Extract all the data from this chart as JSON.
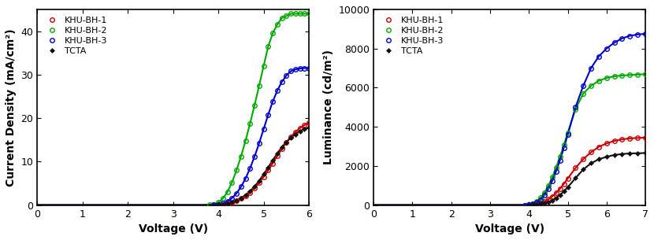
{
  "plot1": {
    "xlabel": "Voltage (V)",
    "ylabel": "Current Density (mA/cm²)",
    "xlim": [
      0,
      6
    ],
    "ylim": [
      0,
      45
    ],
    "yticks": [
      0,
      10,
      20,
      30,
      40
    ],
    "xticks": [
      0,
      1,
      2,
      3,
      4,
      5,
      6
    ],
    "series": [
      {
        "label": "KHU-BH-1",
        "color": "#cc0000",
        "marker": "o",
        "x": [
          0,
          0.5,
          1.0,
          1.5,
          2.0,
          2.5,
          3.0,
          3.5,
          3.6,
          3.7,
          3.8,
          3.9,
          4.0,
          4.1,
          4.2,
          4.3,
          4.4,
          4.5,
          4.6,
          4.7,
          4.8,
          4.9,
          5.0,
          5.1,
          5.2,
          5.3,
          5.4,
          5.5,
          5.6,
          5.7,
          5.8,
          5.9,
          6.0
        ],
        "y": [
          0,
          0,
          0,
          0,
          0,
          0,
          0,
          0,
          0,
          0,
          0,
          0,
          0.05,
          0.12,
          0.28,
          0.55,
          0.95,
          1.5,
          2.1,
          2.9,
          3.9,
          5.1,
          6.5,
          8.0,
          9.6,
          11.3,
          12.9,
          14.4,
          15.7,
          16.8,
          17.7,
          18.4,
          19.0
        ]
      },
      {
        "label": "KHU-BH-2",
        "color": "#00aa00",
        "marker": "o",
        "x": [
          0,
          0.5,
          1.0,
          1.5,
          2.0,
          2.5,
          3.0,
          3.5,
          3.6,
          3.7,
          3.8,
          3.9,
          4.0,
          4.1,
          4.2,
          4.3,
          4.4,
          4.5,
          4.6,
          4.7,
          4.8,
          4.9,
          5.0,
          5.1,
          5.2,
          5.3,
          5.4,
          5.5,
          5.6,
          5.7,
          5.8,
          5.9,
          6.0
        ],
        "y": [
          0,
          0,
          0,
          0,
          0,
          0,
          0,
          0,
          0,
          0,
          0.05,
          0.2,
          0.6,
          1.5,
          3.0,
          5.2,
          8.0,
          11.2,
          14.8,
          18.8,
          23.0,
          27.5,
          32.0,
          36.5,
          39.5,
          41.5,
          43.0,
          43.5,
          44.0,
          44.0,
          44.0,
          44.0,
          44.0
        ]
      },
      {
        "label": "KHU-BH-3",
        "color": "#0000cc",
        "marker": "o",
        "x": [
          0,
          0.5,
          1.0,
          1.5,
          2.0,
          2.5,
          3.0,
          3.5,
          3.6,
          3.7,
          3.8,
          3.9,
          4.0,
          4.1,
          4.2,
          4.3,
          4.4,
          4.5,
          4.6,
          4.7,
          4.8,
          4.9,
          5.0,
          5.1,
          5.2,
          5.3,
          5.4,
          5.5,
          5.6,
          5.7,
          5.8,
          5.9,
          6.0
        ],
        "y": [
          0,
          0,
          0,
          0,
          0,
          0,
          0,
          0,
          0,
          0,
          0,
          0.05,
          0.15,
          0.4,
          0.85,
          1.6,
          2.7,
          4.2,
          6.1,
          8.5,
          11.2,
          14.2,
          17.5,
          20.8,
          23.8,
          26.3,
          28.3,
          29.8,
          30.8,
          31.2,
          31.4,
          31.5,
          31.5
        ]
      },
      {
        "label": "TCTA",
        "color": "#111111",
        "marker": "D",
        "x": [
          0,
          0.5,
          1.0,
          1.5,
          2.0,
          2.5,
          3.0,
          3.5,
          3.6,
          3.7,
          3.8,
          3.9,
          4.0,
          4.1,
          4.2,
          4.3,
          4.4,
          4.5,
          4.6,
          4.7,
          4.8,
          4.9,
          5.0,
          5.1,
          5.2,
          5.3,
          5.4,
          5.5,
          5.6,
          5.7,
          5.8,
          5.9,
          6.0
        ],
        "y": [
          0,
          0,
          0,
          0,
          0,
          0,
          0,
          0,
          0,
          0,
          0,
          0.02,
          0.06,
          0.15,
          0.32,
          0.62,
          1.05,
          1.6,
          2.3,
          3.2,
          4.3,
          5.6,
          7.1,
          8.7,
          10.3,
          11.9,
          13.3,
          14.5,
          15.5,
          16.3,
          17.0,
          17.5,
          17.8
        ]
      }
    ]
  },
  "plot2": {
    "xlabel": "Voltage (V)",
    "ylabel": "Luminance (cd/m²)",
    "xlim": [
      0,
      7
    ],
    "ylim": [
      0,
      10000
    ],
    "yticks": [
      0,
      2000,
      4000,
      6000,
      8000,
      10000
    ],
    "xticks": [
      0,
      1,
      2,
      3,
      4,
      5,
      6,
      7
    ],
    "series": [
      {
        "label": "KHU-BH-1",
        "color": "#cc0000",
        "marker": "o",
        "x": [
          0,
          0.5,
          1.0,
          1.5,
          2.0,
          2.5,
          3.0,
          3.5,
          3.6,
          3.7,
          3.8,
          3.9,
          4.0,
          4.1,
          4.2,
          4.3,
          4.4,
          4.5,
          4.6,
          4.7,
          4.8,
          4.9,
          5.0,
          5.2,
          5.4,
          5.6,
          5.8,
          6.0,
          6.2,
          6.4,
          6.6,
          6.8,
          7.0
        ],
        "y": [
          0,
          0,
          0,
          0,
          0,
          0,
          0,
          0,
          0,
          0,
          0,
          0,
          5,
          18,
          45,
          95,
          175,
          290,
          440,
          620,
          840,
          1090,
          1360,
          1900,
          2350,
          2700,
          2980,
          3150,
          3280,
          3360,
          3410,
          3430,
          3450
        ]
      },
      {
        "label": "KHU-BH-2",
        "color": "#00aa00",
        "marker": "o",
        "x": [
          0,
          0.5,
          1.0,
          1.5,
          2.0,
          2.5,
          3.0,
          3.5,
          3.6,
          3.7,
          3.8,
          3.9,
          4.0,
          4.1,
          4.2,
          4.3,
          4.4,
          4.5,
          4.6,
          4.7,
          4.8,
          4.9,
          5.0,
          5.2,
          5.4,
          5.6,
          5.8,
          6.0,
          6.2,
          6.4,
          6.6,
          6.8,
          7.0
        ],
        "y": [
          0,
          0,
          0,
          0,
          0,
          0,
          0,
          0,
          0,
          0,
          0,
          5,
          25,
          75,
          180,
          370,
          640,
          990,
          1420,
          1920,
          2470,
          3070,
          3700,
          4900,
          5700,
          6100,
          6350,
          6500,
          6580,
          6620,
          6650,
          6670,
          6690
        ]
      },
      {
        "label": "KHU-BH-3",
        "color": "#0000cc",
        "marker": "o",
        "x": [
          0,
          0.5,
          1.0,
          1.5,
          2.0,
          2.5,
          3.0,
          3.5,
          3.6,
          3.7,
          3.8,
          3.9,
          4.0,
          4.1,
          4.2,
          4.3,
          4.4,
          4.5,
          4.6,
          4.7,
          4.8,
          4.9,
          5.0,
          5.2,
          5.4,
          5.6,
          5.8,
          6.0,
          6.2,
          6.4,
          6.6,
          6.8,
          7.0
        ],
        "y": [
          0,
          0,
          0,
          0,
          0,
          0,
          0,
          0,
          0,
          0,
          0,
          2,
          15,
          50,
          130,
          280,
          510,
          830,
          1240,
          1730,
          2290,
          2920,
          3600,
          5000,
          6100,
          7000,
          7600,
          8000,
          8300,
          8520,
          8650,
          8720,
          8750
        ]
      },
      {
        "label": "TCTA",
        "color": "#111111",
        "marker": "D",
        "x": [
          0,
          0.5,
          1.0,
          1.5,
          2.0,
          2.5,
          3.0,
          3.5,
          3.6,
          3.7,
          3.8,
          3.9,
          4.0,
          4.1,
          4.2,
          4.3,
          4.4,
          4.5,
          4.6,
          4.7,
          4.8,
          4.9,
          5.0,
          5.2,
          5.4,
          5.6,
          5.8,
          6.0,
          6.2,
          6.4,
          6.6,
          6.8,
          7.0
        ],
        "y": [
          0,
          0,
          0,
          0,
          0,
          0,
          0,
          0,
          0,
          0,
          0,
          0,
          2,
          8,
          22,
          48,
          90,
          155,
          245,
          365,
          515,
          700,
          910,
          1380,
          1820,
          2140,
          2340,
          2470,
          2560,
          2610,
          2640,
          2650,
          2660
        ]
      }
    ]
  },
  "background_color": "#ffffff",
  "marker_size": 4,
  "line_width": 1.5,
  "font_size_label": 10,
  "font_size_tick": 9,
  "font_size_legend": 8
}
